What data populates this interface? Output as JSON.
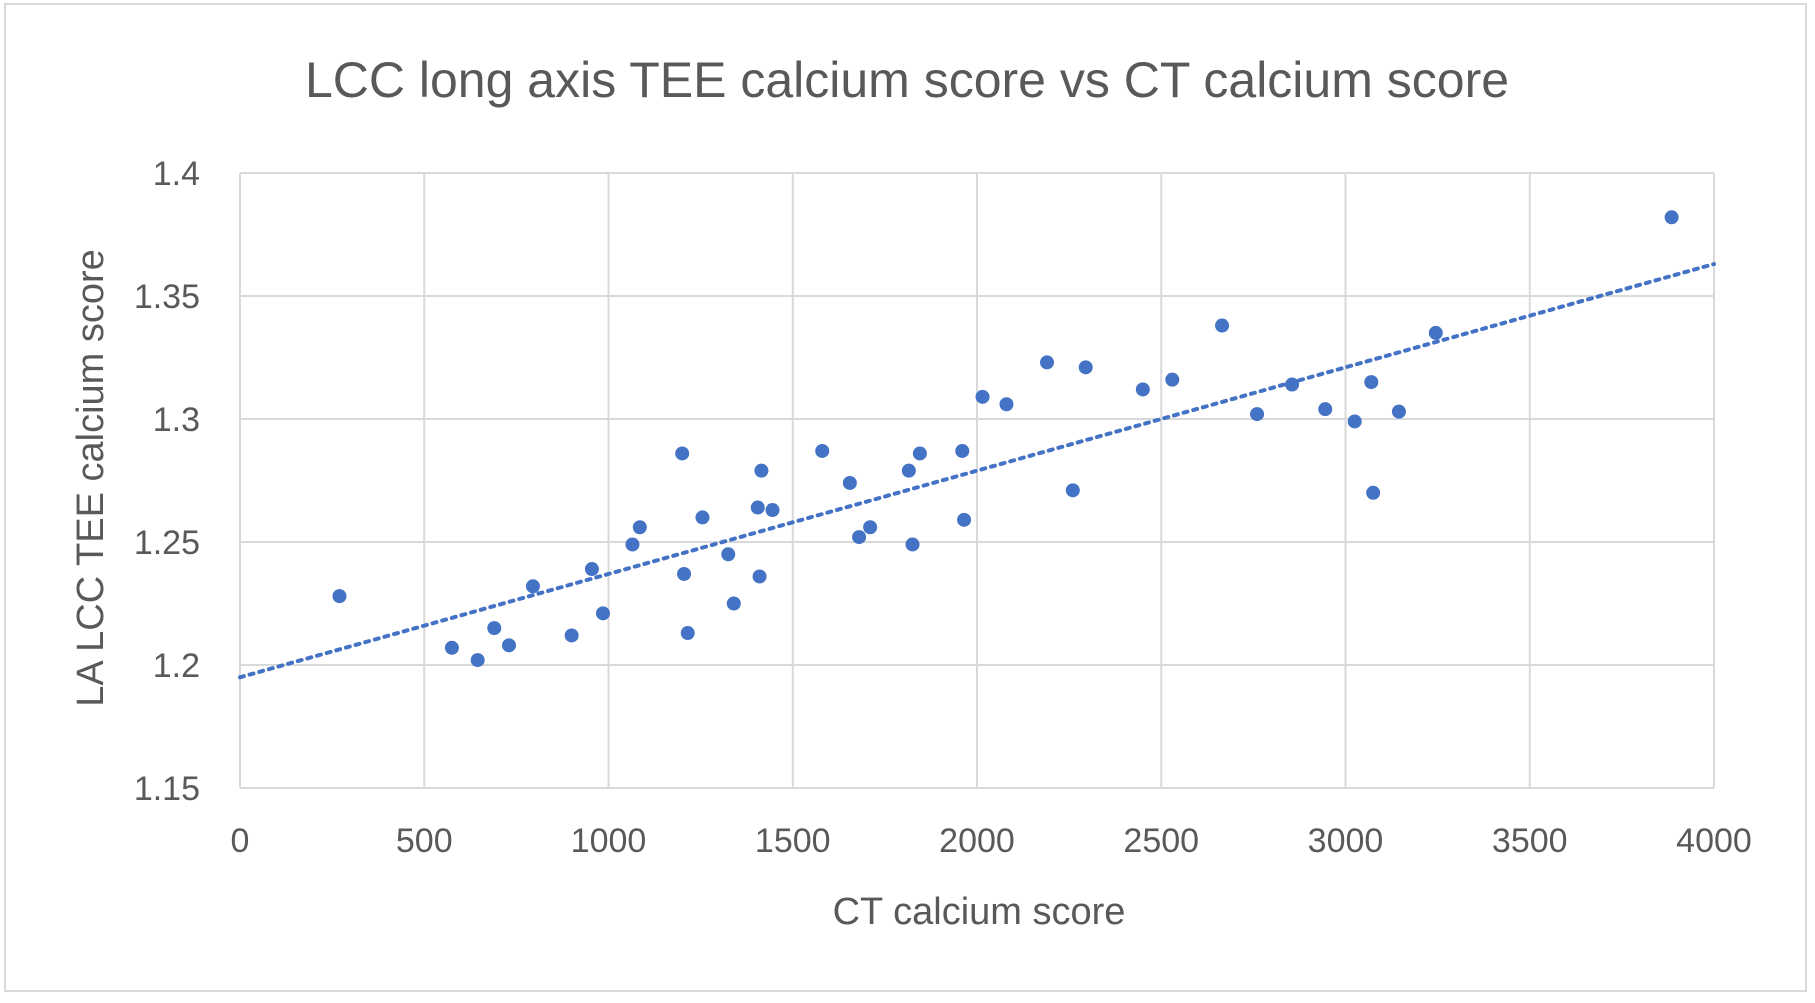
{
  "chart_data": {
    "type": "scatter",
    "title": "LCC long axis TEE calcium score vs CT calcium score",
    "xlabel": "CT calcium score",
    "ylabel": "LA LCC TEE calcium score",
    "xlim": [
      0,
      4000
    ],
    "ylim": [
      1.15,
      1.4
    ],
    "x_ticks": [
      "0",
      "500",
      "1000",
      "1500",
      "2000",
      "2500",
      "3000",
      "3500",
      "4000"
    ],
    "y_ticks": [
      "1.15",
      "1.2",
      "1.25",
      "1.3",
      "1.35",
      "1.4"
    ],
    "grid": true,
    "legend": "none",
    "trendline": {
      "style": "dotted",
      "type": "linear",
      "x": [
        0,
        4000
      ],
      "y": [
        1.195,
        1.363
      ]
    },
    "colors": {
      "marker": "#4472c4",
      "grid": "#d9d9d9",
      "text": "#595959"
    },
    "series": [
      {
        "points": [
          [
            270,
            1.228
          ],
          [
            575,
            1.207
          ],
          [
            645,
            1.202
          ],
          [
            690,
            1.215
          ],
          [
            730,
            1.208
          ],
          [
            795,
            1.232
          ],
          [
            900,
            1.212
          ],
          [
            955,
            1.239
          ],
          [
            985,
            1.221
          ],
          [
            1065,
            1.249
          ],
          [
            1085,
            1.256
          ],
          [
            1200,
            1.286
          ],
          [
            1205,
            1.237
          ],
          [
            1215,
            1.213
          ],
          [
            1255,
            1.26
          ],
          [
            1325,
            1.245
          ],
          [
            1340,
            1.225
          ],
          [
            1405,
            1.264
          ],
          [
            1410,
            1.236
          ],
          [
            1415,
            1.279
          ],
          [
            1445,
            1.263
          ],
          [
            1580,
            1.287
          ],
          [
            1655,
            1.274
          ],
          [
            1680,
            1.252
          ],
          [
            1710,
            1.256
          ],
          [
            1815,
            1.279
          ],
          [
            1825,
            1.249
          ],
          [
            1845,
            1.286
          ],
          [
            1960,
            1.287
          ],
          [
            1965,
            1.259
          ],
          [
            2015,
            1.309
          ],
          [
            2080,
            1.306
          ],
          [
            2190,
            1.323
          ],
          [
            2260,
            1.271
          ],
          [
            2295,
            1.321
          ],
          [
            2450,
            1.312
          ],
          [
            2530,
            1.316
          ],
          [
            2665,
            1.338
          ],
          [
            2760,
            1.302
          ],
          [
            2855,
            1.314
          ],
          [
            2945,
            1.304
          ],
          [
            3025,
            1.299
          ],
          [
            3070,
            1.315
          ],
          [
            3075,
            1.27
          ],
          [
            3145,
            1.303
          ],
          [
            3245,
            1.335
          ],
          [
            3885,
            1.382
          ]
        ]
      }
    ]
  }
}
